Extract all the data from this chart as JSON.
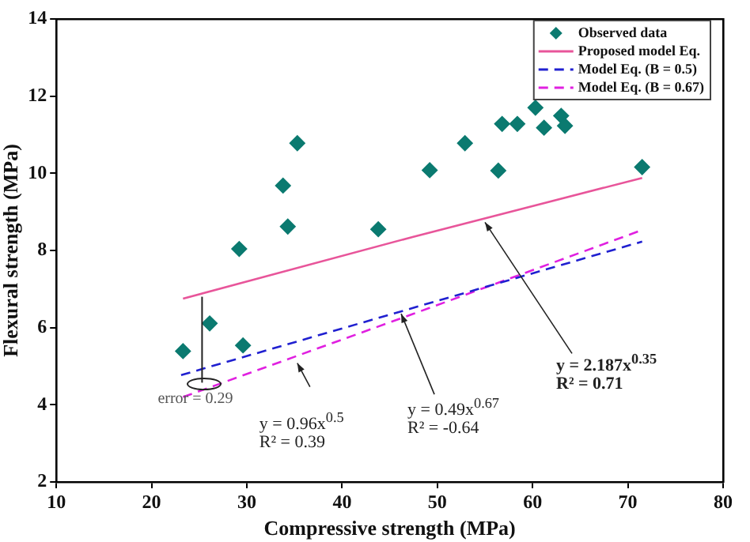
{
  "chart_data": {
    "type": "scatter",
    "xlabel": "Compressive strength (MPa)",
    "ylabel": "Flexural strength (MPa)",
    "xlim": [
      10,
      80
    ],
    "xticks": [
      10,
      20,
      30,
      40,
      50,
      60,
      70,
      80
    ],
    "ylim": [
      2,
      14
    ],
    "yticks": [
      2,
      4,
      6,
      8,
      10,
      12,
      14
    ],
    "grid": false,
    "legend": "top right",
    "marker": "diamond",
    "series": [
      {
        "name": "Observed data",
        "color": "#0b7a70",
        "x": [
          23.3,
          26.1,
          29.2,
          29.6,
          33.8,
          34.3,
          35.3,
          43.8,
          49.2,
          52.9,
          56.4,
          56.8,
          58.4,
          60.3,
          61.2,
          63.0,
          63.4,
          71.5
        ],
        "values": [
          5.39,
          6.11,
          8.04,
          5.54,
          9.68,
          8.62,
          10.78,
          8.55,
          10.08,
          10.78,
          10.07,
          11.28,
          11.28,
          11.7,
          11.18,
          11.49,
          11.23,
          10.16
        ]
      },
      {
        "name": "Proposed model Eq.",
        "type": "line",
        "marker": "none",
        "line_style": "solid",
        "color": "#e8559a",
        "x": [
          23.3,
          47.4,
          71.5
        ],
        "values": [
          6.75,
          8.35,
          9.88
        ]
      },
      {
        "name": "Model Eq. (B = 0.5)",
        "type": "line",
        "marker": "none",
        "line_style": "dashed",
        "color": "#2020d0",
        "x": [
          23.1,
          47.3,
          71.5
        ],
        "values": [
          4.77,
          6.5,
          8.23
        ]
      },
      {
        "name": "Model Eq. (B = 0.67)",
        "type": "line",
        "marker": "none",
        "line_style": "dashed",
        "color": "#e020e0",
        "x": [
          23.3,
          47.4,
          71.5
        ],
        "values": [
          4.2,
          6.35,
          8.53
        ]
      }
    ],
    "annotations": [
      {
        "text": "y = 2.187x$^{0.35}$",
        "x": 55,
        "y": 8.73
      },
      "R² = 0.71",
      {
        "text": "y = 0.49x$^{0.67}$",
        "x": 46.2,
        "y": 6.36
      },
      "R² = -0.64",
      {
        "text": "y = 0.96x$^{0.5}$",
        "x": 35.3,
        "y": 5.08
      },
      "R² = 0.39",
      {
        "text": "error = 0.29",
        "x": 25.3,
        "y": 4.45
      }
    ]
  }
}
